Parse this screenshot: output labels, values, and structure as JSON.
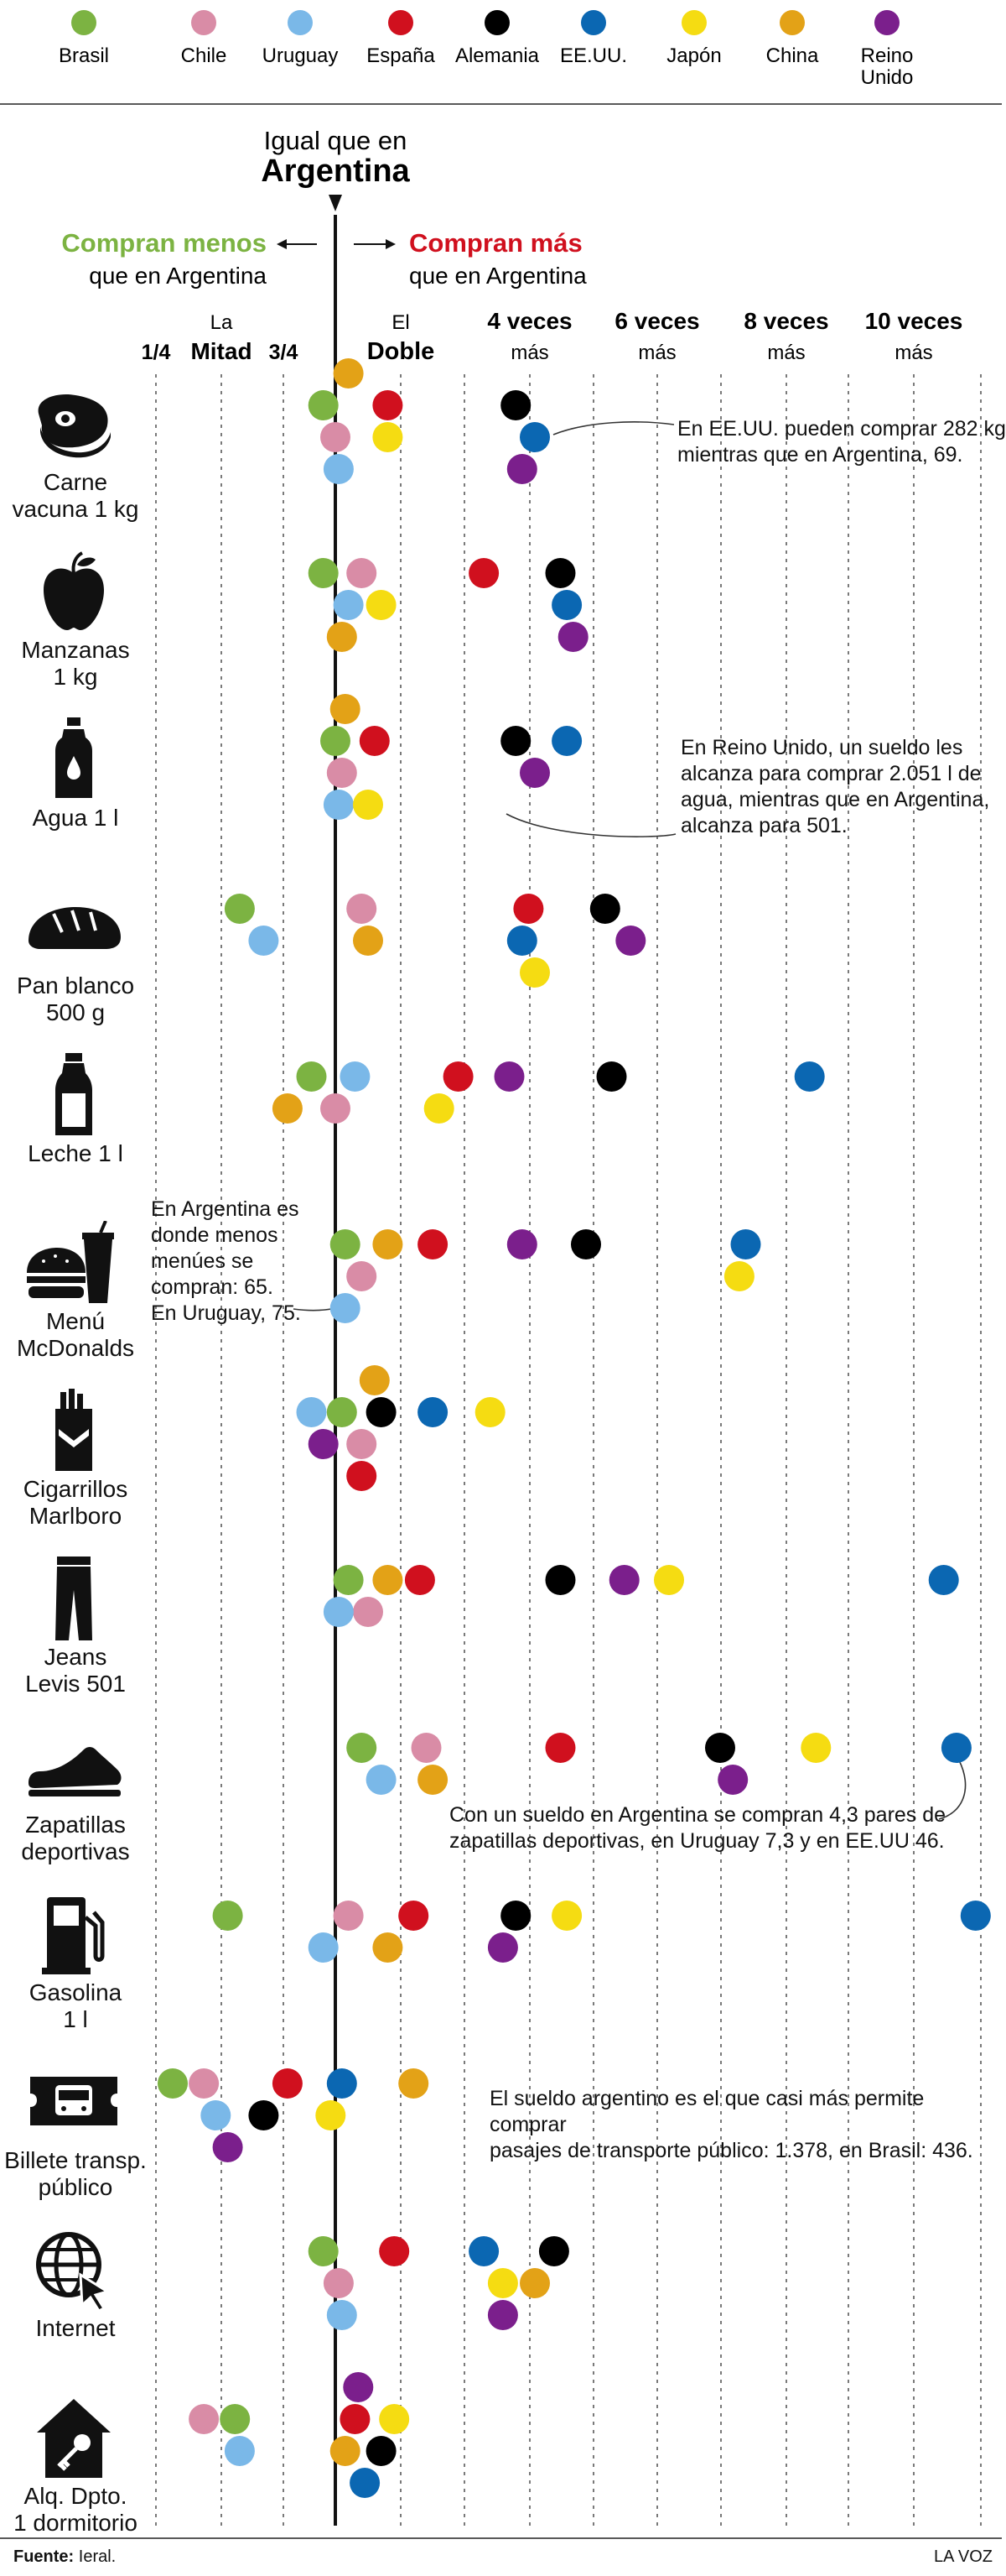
{
  "legend": [
    {
      "name": "Brasil",
      "color": "#7cb342"
    },
    {
      "name": "Chile",
      "color": "#d98ca6"
    },
    {
      "name": "Uruguay",
      "color": "#7ab8e8"
    },
    {
      "name": "España",
      "color": "#d0101e"
    },
    {
      "name": "Alemania",
      "color": "#000000"
    },
    {
      "name": "EE.UU.",
      "color": "#0b67b2"
    },
    {
      "name": "Japón",
      "color": "#f5dc12"
    },
    {
      "name": "China",
      "color": "#e3a217"
    },
    {
      "name": "Reino Unido",
      "color": "#7b1f8c"
    }
  ],
  "reference": {
    "line1": "Igual que en",
    "line2": "Argentina"
  },
  "less": {
    "title": "Compran menos",
    "subtitle": "que en Argentina"
  },
  "more": {
    "title": "Compran más",
    "subtitle": "que en Argentina"
  },
  "axis_labels": {
    "quarter": "1/4",
    "half_top": "La",
    "half_bottom": "Mitad",
    "three_quarters": "3/4",
    "double_top": "El",
    "double_bottom": "Doble",
    "x4_top": "4 veces",
    "x4_bottom": "más",
    "x6_top": "6 veces",
    "x6_bottom": "más",
    "x8_top": "8 veces",
    "x8_bottom": "más",
    "x10_top": "10 veces",
    "x10_bottom": "más"
  },
  "products": [
    {
      "line1": "Carne",
      "line2": "vacuna 1 kg",
      "icon": "meat-icon"
    },
    {
      "line1": "Manzanas",
      "line2": "1 kg",
      "icon": "apple-icon"
    },
    {
      "line1": "Agua 1 l",
      "line2": "",
      "icon": "water-bottle-icon"
    },
    {
      "line1": "Pan blanco",
      "line2": "500 g",
      "icon": "bread-icon"
    },
    {
      "line1": "Leche 1 l",
      "line2": "",
      "icon": "milk-icon"
    },
    {
      "line1": "Menú",
      "line2": "McDonalds",
      "icon": "burger-menu-icon"
    },
    {
      "line1": "Cigarrillos",
      "line2": "Marlboro",
      "icon": "cigarettes-icon"
    },
    {
      "line1": "Jeans",
      "line2": "Levis 501",
      "icon": "jeans-icon"
    },
    {
      "line1": "Zapatillas",
      "line2": "deportivas",
      "icon": "sneaker-icon"
    },
    {
      "line1": "Gasolina",
      "line2": "1 l",
      "icon": "gas-pump-icon"
    },
    {
      "line1": "Billete transp.",
      "line2": "público",
      "icon": "bus-ticket-icon"
    },
    {
      "line1": "Internet",
      "line2": "",
      "icon": "globe-cursor-icon"
    },
    {
      "line1": "Alq. Dpto.",
      "line2": "1 dormitorio",
      "icon": "house-key-icon"
    }
  ],
  "annotations": {
    "eeuu_carne": [
      "En EE.UU. pueden comprar 282 kg",
      "mientras que en Argentina, 69."
    ],
    "uk_agua": [
      "En Reino Unido, un sueldo les",
      "alcanza para comprar 2.051 l de",
      "agua, mientras que en Argentina,",
      "alcanza para 501."
    ],
    "mcdonalds": [
      "En Argentina es",
      "donde menos",
      "menúes se",
      "compran: 65.",
      "En Uruguay, 75."
    ],
    "zapatillas": [
      "Con un sueldo en Argentina se compran 4,3 pares de",
      "zapatillas deportivas, en Uruguay 7,3 y en EE.UU 46."
    ],
    "transporte": [
      "El sueldo argentino es el que casi más permite comprar",
      "pasajes de transporte público: 1.378, en Brasil:  436."
    ]
  },
  "source": {
    "label": "Fuente:",
    "text": " Ieral."
  },
  "credit": "LA VOZ",
  "chart_data": {
    "type": "scatter",
    "x_scale": "ratio vs Argentina (Argentina = 1)",
    "xlim": [
      0.25,
      11.5
    ],
    "colors": {
      "Brasil": "#7cb342",
      "Chile": "#d98ca6",
      "Uruguay": "#7ab8e8",
      "España": "#d0101e",
      "Alemania": "#000000",
      "EE.UU.": "#0b67b2",
      "Japón": "#f5dc12",
      "China": "#e3a217",
      "Reino Unido": "#7b1f8c"
    },
    "rows": [
      {
        "product": "Carne vacuna 1 kg",
        "values": {
          "Brasil": 0.95,
          "Chile": 1.0,
          "Uruguay": 1.05,
          "España": 1.8,
          "Alemania": 3.8,
          "EE.UU.": 4.1,
          "Japón": 1.8,
          "China": 1.2,
          "Reino Unido": 3.9
        }
      },
      {
        "product": "Manzanas 1 kg",
        "values": {
          "Brasil": 0.95,
          "Chile": 1.4,
          "Uruguay": 1.2,
          "España": 3.3,
          "Alemania": 4.5,
          "EE.UU.": 4.6,
          "Japón": 1.7,
          "China": 1.1,
          "Reino Unido": 4.7
        }
      },
      {
        "product": "Agua 1 l",
        "values": {
          "Brasil": 1.0,
          "Chile": 1.1,
          "Uruguay": 1.05,
          "España": 1.6,
          "Alemania": 3.8,
          "EE.UU.": 4.6,
          "Japón": 1.5,
          "China": 1.15,
          "Reino Unido": 4.1
        }
      },
      {
        "product": "Pan blanco 500 g",
        "values": {
          "Brasil": 0.6,
          "Chile": 1.4,
          "Uruguay": 0.7,
          "España": 4.0,
          "Alemania": 5.2,
          "EE.UU.": 3.9,
          "Japón": 4.1,
          "China": 1.5,
          "Reino Unido": 5.6
        }
      },
      {
        "product": "Leche 1 l",
        "values": {
          "Brasil": 0.9,
          "Chile": 1.0,
          "Uruguay": 1.3,
          "España": 2.9,
          "Alemania": 5.3,
          "EE.UU.": 8.4,
          "Japón": 2.6,
          "China": 0.8,
          "Reino Unido": 3.7
        }
      },
      {
        "product": "Menú McDonalds",
        "values": {
          "Brasil": 1.15,
          "Chile": 1.4,
          "Uruguay": 1.15,
          "España": 2.5,
          "Alemania": 4.9,
          "EE.UU.": 7.4,
          "Japón": 7.3,
          "China": 1.8,
          "Reino Unido": 3.9
        }
      },
      {
        "product": "Cigarrillos Marlboro",
        "values": {
          "Brasil": 1.1,
          "Chile": 1.4,
          "Uruguay": 0.9,
          "España": 1.4,
          "Alemania": 1.7,
          "EE.UU.": 2.5,
          "Japón": 3.4,
          "China": 1.6,
          "Reino Unido": 0.95
        }
      },
      {
        "product": "Jeans Levis 501",
        "values": {
          "Brasil": 1.2,
          "Chile": 1.5,
          "Uruguay": 1.05,
          "España": 2.3,
          "Alemania": 4.5,
          "EE.UU.": 10.5,
          "Japón": 6.2,
          "China": 1.8,
          "Reino Unido": 5.5
        }
      },
      {
        "product": "Zapatillas deportivas",
        "values": {
          "Brasil": 1.4,
          "Chile": 2.4,
          "Uruguay": 1.7,
          "España": 4.5,
          "Alemania": 7.0,
          "EE.UU.": 10.7,
          "Japón": 8.5,
          "China": 2.5,
          "Reino Unido": 7.2
        }
      },
      {
        "product": "Gasolina 1 l",
        "values": {
          "Brasil": 0.55,
          "Chile": 1.2,
          "Uruguay": 0.95,
          "España": 2.2,
          "Alemania": 3.8,
          "EE.UU.": 11.0,
          "Japón": 4.6,
          "China": 1.8,
          "Reino Unido": 3.6
        }
      },
      {
        "product": "Billete transp. público",
        "values": {
          "Brasil": 0.32,
          "Chile": 0.45,
          "Uruguay": 0.5,
          "España": 0.8,
          "Alemania": 0.7,
          "EE.UU.": 1.1,
          "Japón": 0.98,
          "China": 2.2,
          "Reino Unido": 0.55
        }
      },
      {
        "product": "Internet",
        "values": {
          "Brasil": 0.95,
          "Chile": 1.05,
          "Uruguay": 1.1,
          "España": 1.9,
          "Alemania": 4.4,
          "EE.UU.": 3.3,
          "Japón": 3.6,
          "China": 4.1,
          "Reino Unido": 3.6
        }
      },
      {
        "product": "Alq. Dpto. 1 dormitorio",
        "values": {
          "Brasil": 0.58,
          "Chile": 0.45,
          "Uruguay": 0.6,
          "España": 1.3,
          "Alemania": 1.7,
          "EE.UU.": 1.45,
          "Japón": 1.9,
          "China": 1.15,
          "Reino Unido": 1.35
        }
      }
    ]
  }
}
